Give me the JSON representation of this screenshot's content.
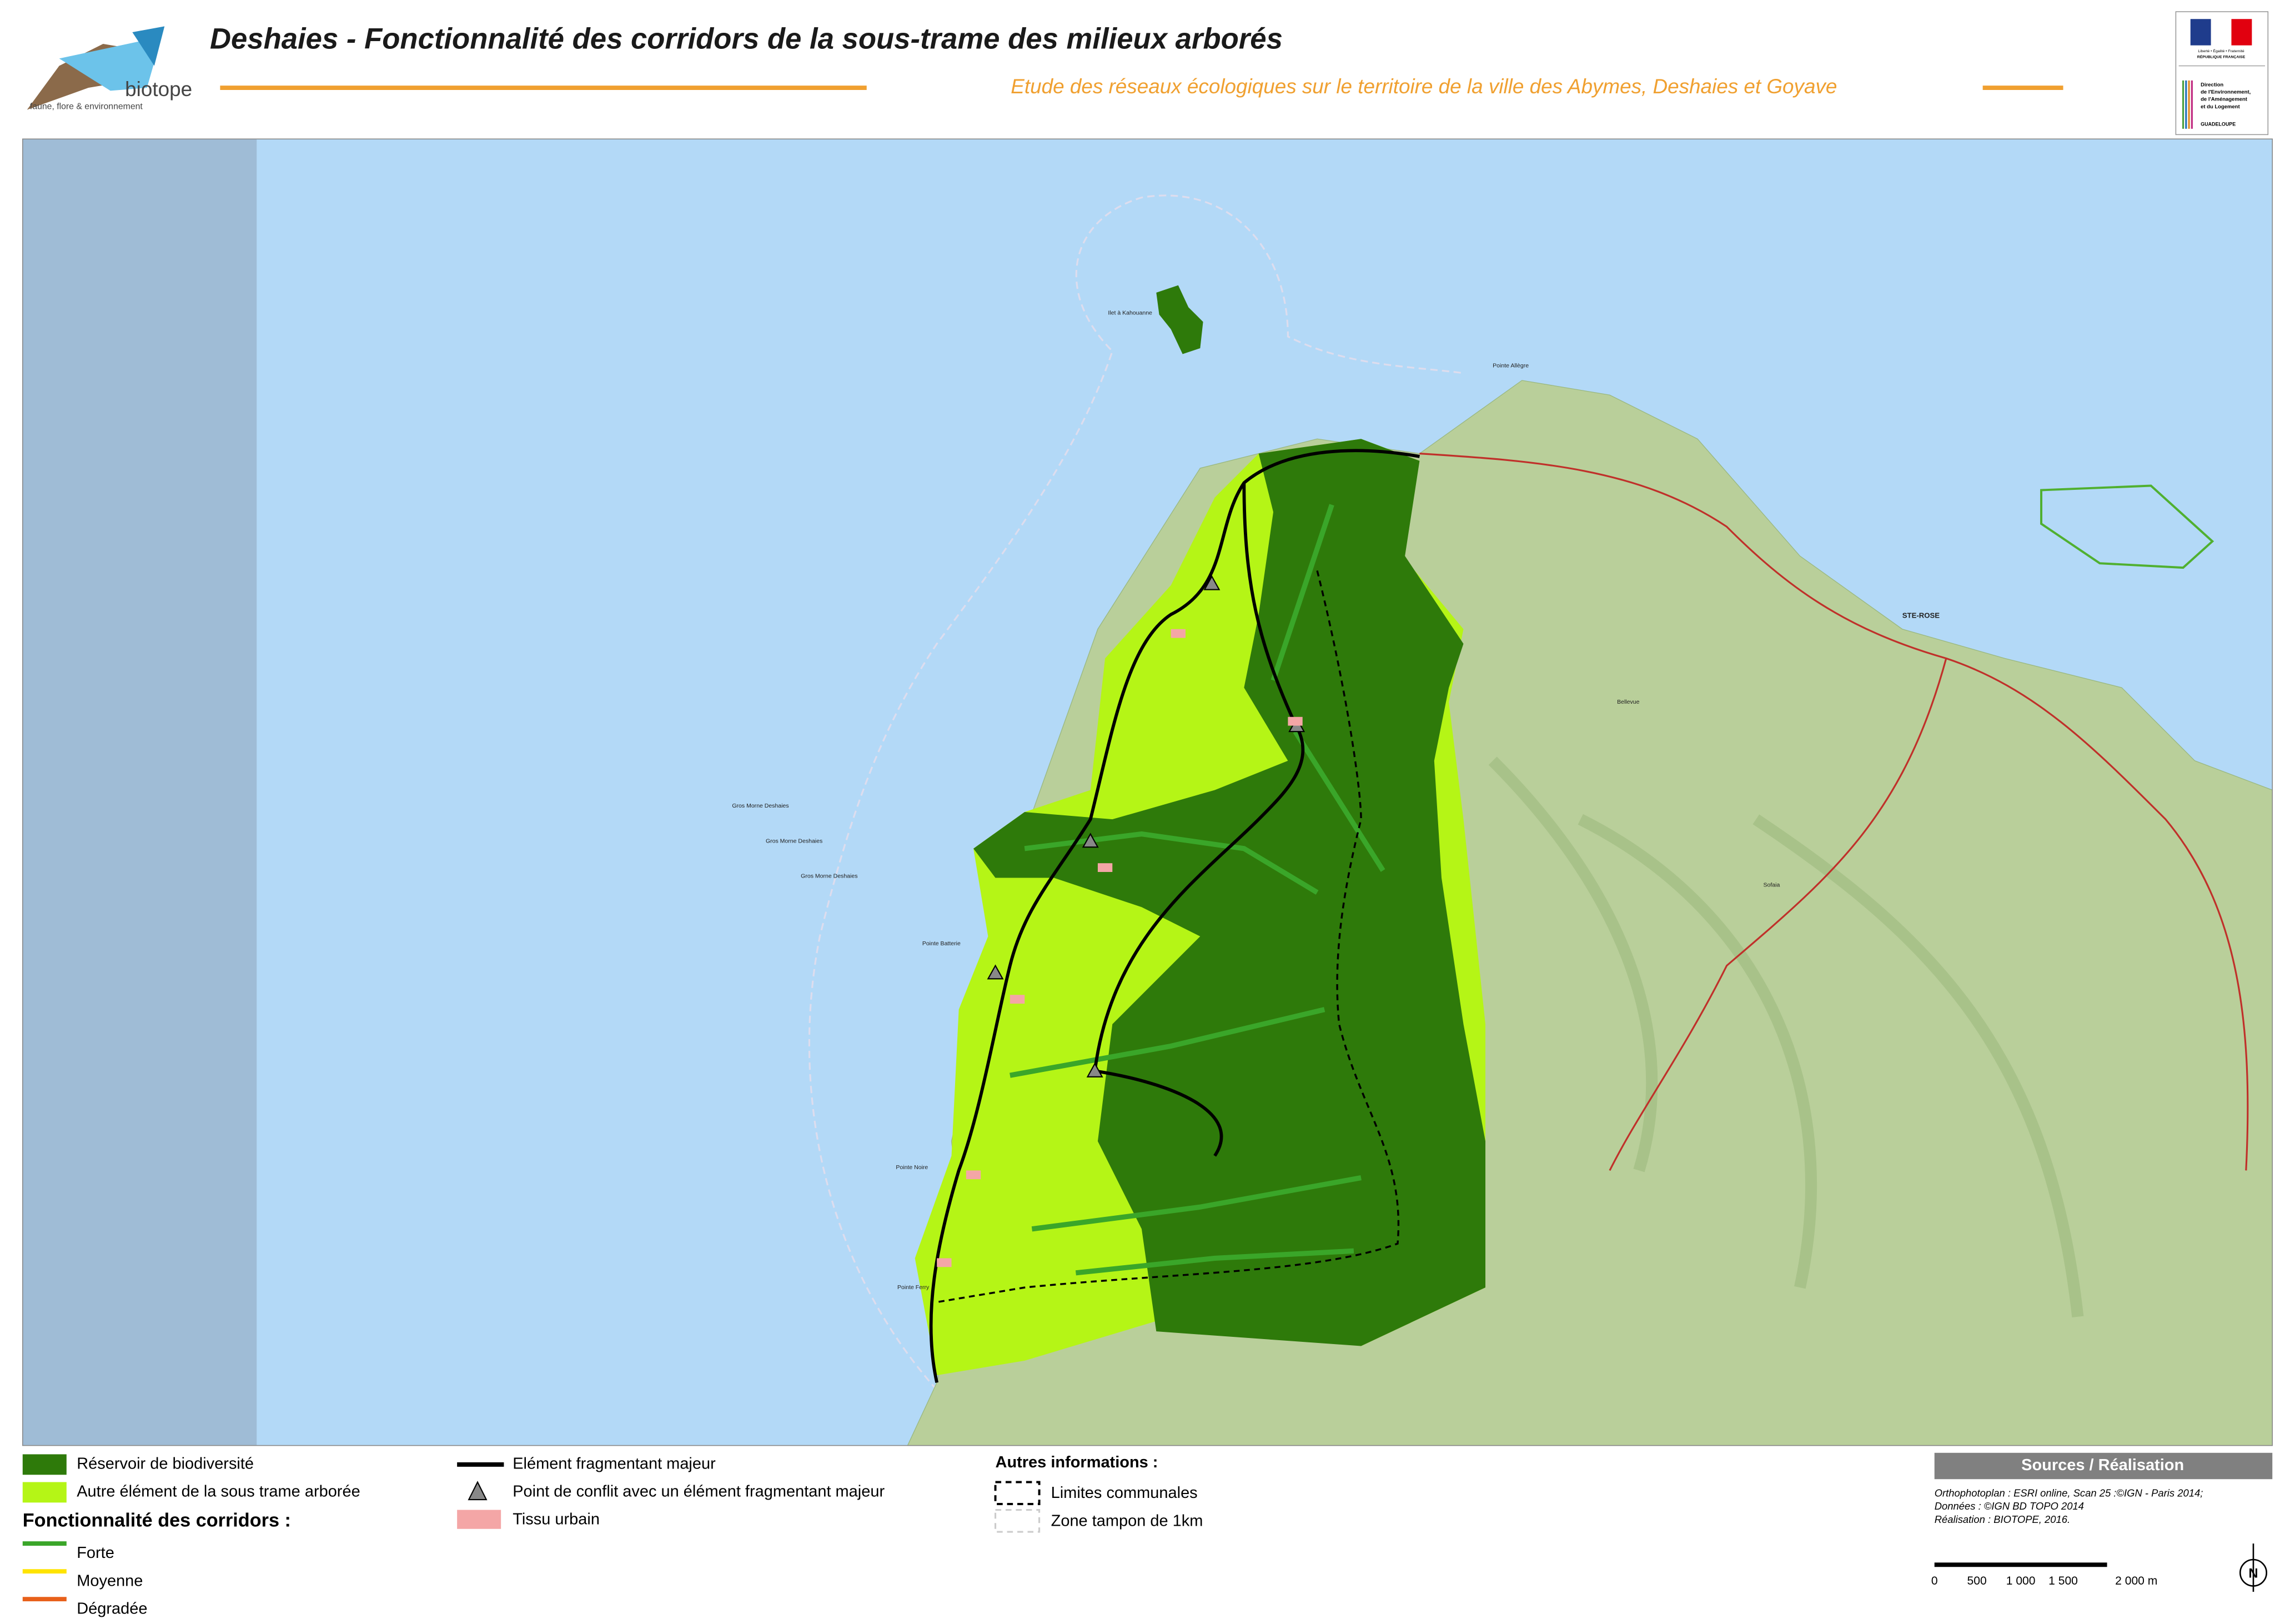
{
  "header": {
    "title": "Deshaies - Fonctionnalité des corridors de la sous-trame des milieux arborés",
    "subtitle": "Etude des réseaux écologiques sur le territoire de la ville des Abymes, Deshaies et Goyave",
    "logo_text": "biotope",
    "logo_tagline": "faune, flore & environnement",
    "marianne_motto": "Liberté • Égalité • Fraternité",
    "marianne_country": "RÉPUBLIQUE FRANÇAISE",
    "dreal_lines": [
      "Direction",
      "de l'Environnement,",
      "de l'Aménagement",
      "et du Logement"
    ],
    "dreal_region": "GUADELOUPE"
  },
  "map": {
    "labels": [
      "Gros Morne Deshaies",
      "Gros Morne Deshaies",
      "Gros Morne Deshaies",
      "STE-ROSE",
      "Pointe Allègre",
      "Ilet à Kahouanne",
      "Pointe Ferry",
      "Pointe Noire",
      "Pointe Batterie",
      "Bellevue",
      "Sofaia"
    ]
  },
  "legend": {
    "reservoir": "Réservoir de biodiversité",
    "autre": "Autre élément de la sous trame arborée",
    "corridors_title": "Fonctionnalité des corridors :",
    "corridors": [
      "Forte",
      "Moyenne",
      "Dégradée"
    ],
    "fragmentant": "Elément fragmentant majeur",
    "conflit": "Point de conflit avec un élément fragmentant majeur",
    "tissu": "Tissu urbain",
    "autres_title": "Autres informations :",
    "limites": "Limites communales",
    "tampon": "Zone tampon de 1km"
  },
  "sources": {
    "title": "Sources / Réalisation",
    "lines": [
      "Orthophotoplan : ESRI online, Scan 25 :©IGN - Paris 2014;",
      "Données : ©IGN BD TOPO 2014",
      "Réalisation : BIOTOPE, 2016."
    ]
  },
  "scale": {
    "labels": [
      "0",
      "500",
      "1 000",
      "1 500",
      "2 000 m"
    ],
    "north": "N"
  }
}
